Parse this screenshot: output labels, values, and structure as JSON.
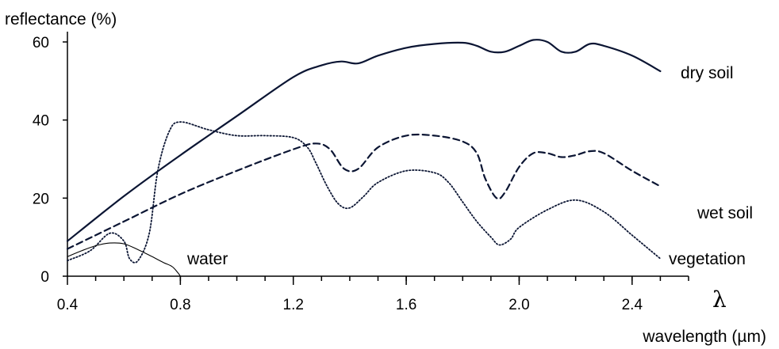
{
  "chart_data": {
    "type": "line",
    "ylabel": "reflectance (%)",
    "xlabel": "wavelength (µm)",
    "x_symbol": "λ",
    "xlim": [
      0.4,
      2.6
    ],
    "ylim": [
      0,
      62
    ],
    "x_ticks": [
      0.4,
      0.8,
      1.2,
      1.6,
      2.0,
      2.4
    ],
    "x_tick_labels": [
      "0.4",
      "0.8",
      "1.2",
      "1.6",
      "2.0",
      "2.4"
    ],
    "x_minor_step": 0.1,
    "y_ticks": [
      0,
      20,
      40,
      60
    ],
    "y_tick_labels": [
      "0",
      "20",
      "40",
      "60"
    ],
    "grid": false,
    "series": [
      {
        "name": "dry soil",
        "style": "solid",
        "x": [
          0.4,
          0.6,
          0.8,
          1.0,
          1.2,
          1.3,
          1.37,
          1.43,
          1.5,
          1.6,
          1.7,
          1.8,
          1.85,
          1.9,
          1.95,
          2.0,
          2.05,
          2.1,
          2.15,
          2.2,
          2.25,
          2.3,
          2.4,
          2.5
        ],
        "y": [
          9,
          20.5,
          31,
          41,
          51,
          54,
          55,
          54.5,
          56.5,
          58.5,
          59.5,
          59.8,
          59,
          57.5,
          57.5,
          59,
          60.5,
          60,
          57.5,
          57.5,
          59.5,
          59,
          56.5,
          52.5
        ]
      },
      {
        "name": "wet soil",
        "style": "dashed",
        "x": [
          0.4,
          0.6,
          0.8,
          1.0,
          1.2,
          1.28,
          1.33,
          1.38,
          1.43,
          1.5,
          1.6,
          1.7,
          1.8,
          1.85,
          1.88,
          1.92,
          1.95,
          2.0,
          2.05,
          2.1,
          2.15,
          2.2,
          2.25,
          2.3,
          2.4,
          2.5
        ],
        "y": [
          7,
          14,
          21,
          27,
          32.5,
          34,
          32.5,
          27.5,
          27.5,
          33,
          36,
          36,
          34.5,
          31.5,
          25,
          20,
          21.5,
          28,
          31.5,
          31.5,
          30.5,
          31,
          32,
          31.5,
          27,
          23
        ]
      },
      {
        "name": "vegetation",
        "style": "dotted",
        "x": [
          0.4,
          0.48,
          0.55,
          0.6,
          0.62,
          0.65,
          0.69,
          0.72,
          0.76,
          0.8,
          0.9,
          1.0,
          1.1,
          1.2,
          1.25,
          1.28,
          1.32,
          1.36,
          1.4,
          1.45,
          1.5,
          1.6,
          1.7,
          1.75,
          1.8,
          1.85,
          1.9,
          1.93,
          1.97,
          2.0,
          2.1,
          2.2,
          2.3,
          2.4,
          2.5
        ],
        "y": [
          4,
          6.5,
          11,
          9,
          4.5,
          4,
          11,
          27,
          37,
          39.5,
          37.5,
          36,
          36,
          35.5,
          33,
          29,
          23,
          18.5,
          17.5,
          20.5,
          24,
          27,
          26.5,
          24,
          19,
          14,
          10,
          8,
          9.5,
          12.5,
          17,
          19.5,
          16.5,
          10.5,
          4.5
        ]
      },
      {
        "name": "water",
        "style": "thin",
        "x": [
          0.4,
          0.45,
          0.5,
          0.55,
          0.6,
          0.65,
          0.7,
          0.74,
          0.77,
          0.79,
          0.8
        ],
        "y": [
          5,
          6.5,
          7.8,
          8.5,
          8.3,
          6.8,
          5.0,
          3.5,
          2.5,
          1.0,
          0
        ]
      }
    ]
  }
}
